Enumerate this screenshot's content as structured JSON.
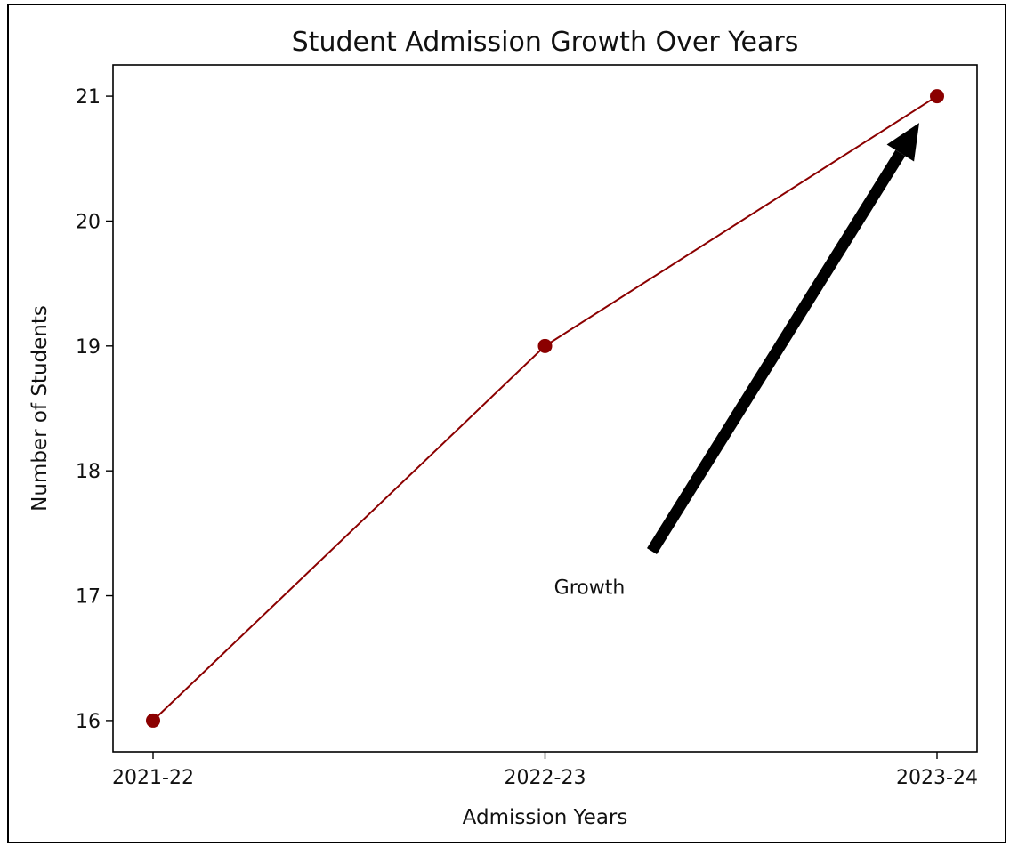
{
  "chart_data": {
    "type": "line",
    "title": "Student Admission Growth Over Years",
    "xlabel": "Admission Years",
    "ylabel": "Number of Students",
    "categories": [
      "2021-22",
      "2022-23",
      "2023-24"
    ],
    "series": [
      {
        "values": [
          16,
          19,
          21
        ],
        "color": "#8B0000",
        "marker": "circle"
      }
    ],
    "yticks": [
      16,
      17,
      18,
      19,
      20,
      21
    ],
    "ylim": [
      15.75,
      21.25
    ],
    "grid": false,
    "annotations": [
      {
        "text": "Growth",
        "xy": [
          "2023-24",
          21
        ],
        "arrow": true,
        "arrow_color": "#000000"
      }
    ]
  }
}
